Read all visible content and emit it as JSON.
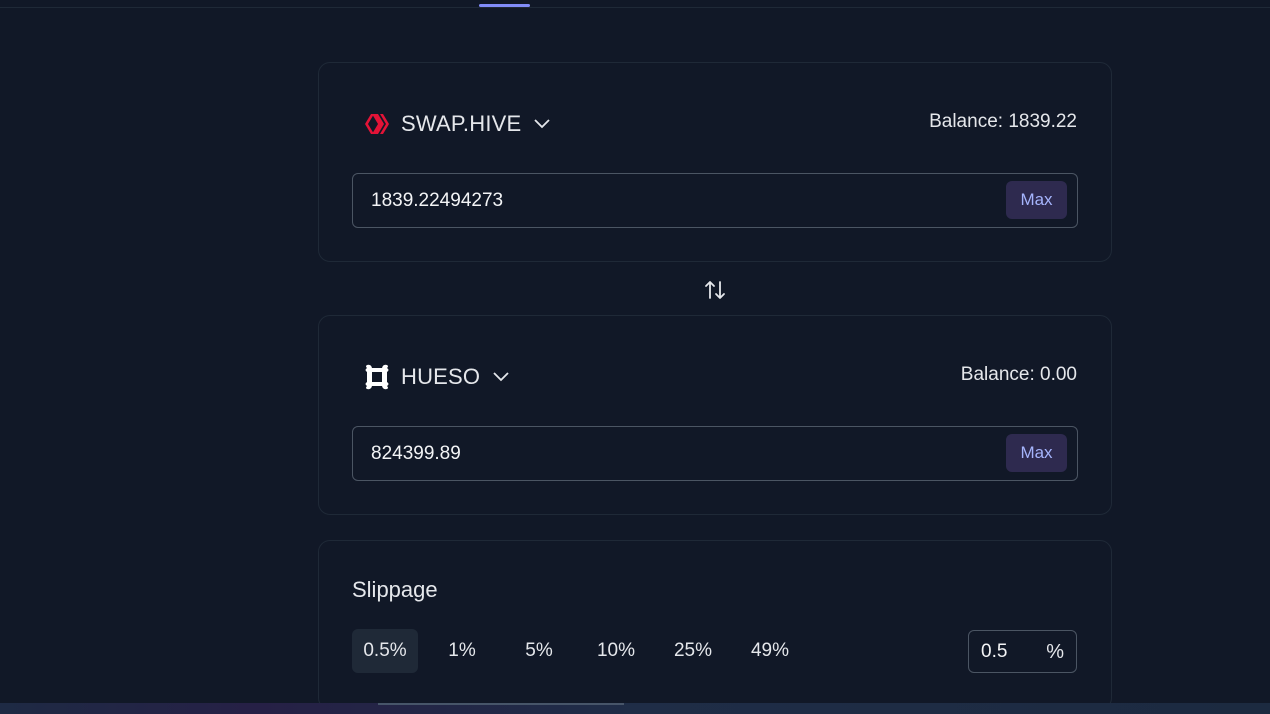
{
  "from": {
    "token": {
      "symbol": "SWAP.HIVE",
      "icon": "hive-logo-icon",
      "icon_color": "#e31337"
    },
    "balance_label": "Balance: 1839.22",
    "amount": "1839.22494273",
    "max_label": "Max"
  },
  "to": {
    "token": {
      "symbol": "HUESO",
      "icon": "hueso-bone-icon",
      "icon_color": "#ffffff"
    },
    "balance_label": "Balance: 0.00",
    "amount": "824399.89",
    "max_label": "Max"
  },
  "swap_direction_icon": "swap-arrows-icon",
  "slippage": {
    "title": "Slippage",
    "options": [
      "0.5%",
      "1%",
      "5%",
      "10%",
      "25%",
      "49%"
    ],
    "selected": "0.5%",
    "custom_value": "0.5",
    "unit": "%"
  },
  "colors": {
    "background": "#111827",
    "accent": "#818cf8",
    "max_button_bg": "#2e2a4f",
    "max_button_text": "#a5b4fc"
  }
}
